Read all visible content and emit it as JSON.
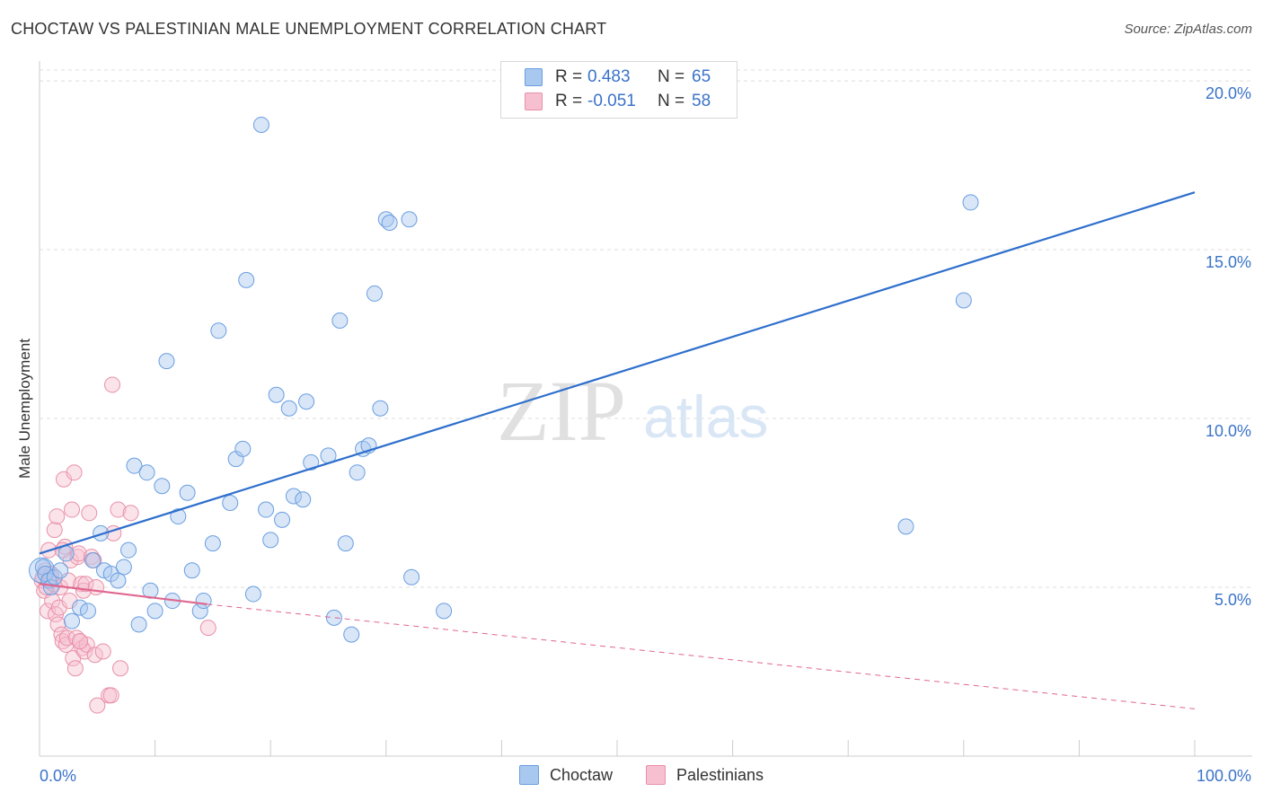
{
  "header": {
    "title": "CHOCTAW VS PALESTINIAN MALE UNEMPLOYMENT CORRELATION CHART",
    "source": "Source: ZipAtlas.com"
  },
  "watermark": {
    "zip": "ZIP",
    "atlas": "atlas"
  },
  "legend": {
    "rows": [
      {
        "r_label": "R =",
        "r_value": "0.483",
        "n_label": "N =",
        "n_value": "65",
        "color": "#a8c8f0",
        "border": "#6a9ee0"
      },
      {
        "r_label": "R =",
        "r_value": "-0.051",
        "n_label": "N =",
        "n_value": "58",
        "color": "#f7c0d0",
        "border": "#e890a8"
      }
    ]
  },
  "bottom_legend": {
    "items": [
      {
        "label": "Choctaw",
        "color": "#a8c8f0",
        "border": "#6a9ee0"
      },
      {
        "label": "Palestinians",
        "color": "#f7c0d0",
        "border": "#e890a8"
      }
    ]
  },
  "colors": {
    "choctaw_fill": "rgba(168,200,240,0.45)",
    "choctaw_stroke": "#6a9ee0",
    "choctaw_line": "#2e6fcc",
    "pal_fill": "rgba(247,192,208,0.45)",
    "pal_stroke": "#e890a8",
    "pal_line": "#e06690",
    "grid": "#dddddd",
    "axis": "#cccccc"
  },
  "chart_data": {
    "type": "scatter",
    "title": "CHOCTAW VS PALESTINIAN MALE UNEMPLOYMENT CORRELATION CHART",
    "xlabel": "",
    "ylabel": "Male Unemployment",
    "xlim": [
      0,
      100
    ],
    "ylim": [
      0,
      20.8
    ],
    "x_tick_labels": [
      {
        "value": 0,
        "label": "0.0%"
      },
      {
        "value": 100,
        "label": "100.0%"
      }
    ],
    "y_tick_labels": [
      {
        "value": 5,
        "label": "5.0%"
      },
      {
        "value": 10,
        "label": "10.0%"
      },
      {
        "value": 15,
        "label": "15.0%"
      },
      {
        "value": 20,
        "label": "20.0%"
      }
    ],
    "x_minor_ticks": [
      0,
      10,
      20,
      30,
      40,
      50,
      60,
      70,
      80,
      90,
      100
    ],
    "series": [
      {
        "name": "Choctaw",
        "r": 0.483,
        "n": 65,
        "trend": {
          "x": [
            0,
            100
          ],
          "y": [
            6.0,
            16.7
          ],
          "dashed": false
        },
        "points": [
          [
            0.3,
            5.6
          ],
          [
            0.5,
            5.4
          ],
          [
            0.8,
            5.2
          ],
          [
            1.0,
            5.0
          ],
          [
            1.3,
            5.3
          ],
          [
            1.8,
            5.5
          ],
          [
            2.3,
            6.0
          ],
          [
            2.8,
            4.0
          ],
          [
            3.5,
            4.4
          ],
          [
            4.2,
            4.3
          ],
          [
            4.6,
            5.8
          ],
          [
            5.3,
            6.6
          ],
          [
            5.6,
            5.5
          ],
          [
            6.2,
            5.4
          ],
          [
            6.8,
            5.2
          ],
          [
            7.3,
            5.6
          ],
          [
            7.7,
            6.1
          ],
          [
            8.2,
            8.6
          ],
          [
            8.6,
            3.9
          ],
          [
            9.3,
            8.4
          ],
          [
            9.6,
            4.9
          ],
          [
            10.0,
            4.3
          ],
          [
            10.6,
            8.0
          ],
          [
            11.0,
            11.7
          ],
          [
            11.5,
            4.6
          ],
          [
            12.0,
            7.1
          ],
          [
            12.8,
            7.8
          ],
          [
            13.2,
            5.5
          ],
          [
            13.9,
            4.3
          ],
          [
            14.2,
            4.6
          ],
          [
            15.0,
            6.3
          ],
          [
            15.5,
            12.6
          ],
          [
            16.5,
            7.5
          ],
          [
            17.0,
            8.8
          ],
          [
            17.6,
            9.1
          ],
          [
            17.9,
            14.1
          ],
          [
            18.5,
            4.8
          ],
          [
            19.2,
            18.7
          ],
          [
            19.6,
            7.3
          ],
          [
            20.0,
            6.4
          ],
          [
            20.5,
            10.7
          ],
          [
            21.0,
            7.0
          ],
          [
            21.6,
            10.3
          ],
          [
            22.0,
            7.7
          ],
          [
            22.8,
            7.6
          ],
          [
            23.1,
            10.5
          ],
          [
            23.5,
            8.7
          ],
          [
            25.0,
            8.9
          ],
          [
            25.5,
            4.1
          ],
          [
            26.0,
            12.9
          ],
          [
            26.5,
            6.3
          ],
          [
            27.0,
            3.6
          ],
          [
            27.5,
            8.4
          ],
          [
            28.0,
            9.1
          ],
          [
            29.0,
            13.7
          ],
          [
            29.5,
            10.3
          ],
          [
            30.0,
            15.9
          ],
          [
            30.3,
            15.8
          ],
          [
            32.0,
            15.9
          ],
          [
            32.2,
            5.3
          ],
          [
            35.0,
            4.3
          ],
          [
            75.0,
            6.8
          ],
          [
            80.0,
            13.5
          ],
          [
            80.6,
            16.4
          ],
          [
            28.5,
            9.2
          ]
        ]
      },
      {
        "name": "Palestinians",
        "r": -0.051,
        "n": 58,
        "trend": {
          "x": [
            0,
            14.5
          ],
          "y": [
            5.1,
            4.5
          ],
          "dashed": false
        },
        "trend_extension": {
          "x": [
            14.5,
            100
          ],
          "y": [
            4.5,
            1.4
          ],
          "dashed": true
        },
        "points": [
          [
            0.2,
            5.2
          ],
          [
            0.3,
            5.3
          ],
          [
            0.4,
            4.9
          ],
          [
            0.5,
            5.5
          ],
          [
            0.6,
            5.0
          ],
          [
            0.7,
            4.3
          ],
          [
            0.8,
            6.1
          ],
          [
            0.9,
            5.2
          ],
          [
            1.0,
            5.4
          ],
          [
            1.1,
            4.6
          ],
          [
            1.2,
            5.1
          ],
          [
            1.3,
            6.7
          ],
          [
            1.4,
            4.2
          ],
          [
            1.5,
            7.1
          ],
          [
            1.6,
            3.9
          ],
          [
            1.7,
            4.4
          ],
          [
            1.8,
            5.0
          ],
          [
            1.9,
            3.6
          ],
          [
            2.0,
            3.4
          ],
          [
            2.1,
            8.2
          ],
          [
            2.2,
            6.2
          ],
          [
            2.3,
            3.3
          ],
          [
            2.4,
            3.5
          ],
          [
            2.5,
            5.2
          ],
          [
            2.6,
            4.6
          ],
          [
            2.7,
            5.8
          ],
          [
            2.8,
            7.3
          ],
          [
            2.9,
            2.9
          ],
          [
            3.0,
            8.4
          ],
          [
            3.1,
            2.6
          ],
          [
            3.2,
            3.5
          ],
          [
            3.3,
            5.9
          ],
          [
            3.4,
            6.0
          ],
          [
            3.5,
            3.4
          ],
          [
            3.6,
            5.1
          ],
          [
            3.7,
            3.2
          ],
          [
            3.8,
            4.9
          ],
          [
            3.9,
            3.1
          ],
          [
            4.0,
            5.1
          ],
          [
            4.1,
            3.3
          ],
          [
            4.3,
            7.2
          ],
          [
            4.5,
            5.9
          ],
          [
            4.7,
            5.8
          ],
          [
            4.8,
            3.0
          ],
          [
            4.9,
            5.0
          ],
          [
            5.0,
            1.5
          ],
          [
            5.5,
            3.1
          ],
          [
            6.0,
            1.8
          ],
          [
            6.2,
            1.8
          ],
          [
            6.3,
            11.0
          ],
          [
            6.4,
            6.6
          ],
          [
            6.8,
            7.3
          ],
          [
            7.0,
            2.6
          ],
          [
            7.9,
            7.2
          ],
          [
            14.6,
            3.8
          ],
          [
            3.5,
            3.4
          ],
          [
            1.0,
            5.3
          ],
          [
            2.0,
            6.1
          ]
        ]
      }
    ]
  }
}
